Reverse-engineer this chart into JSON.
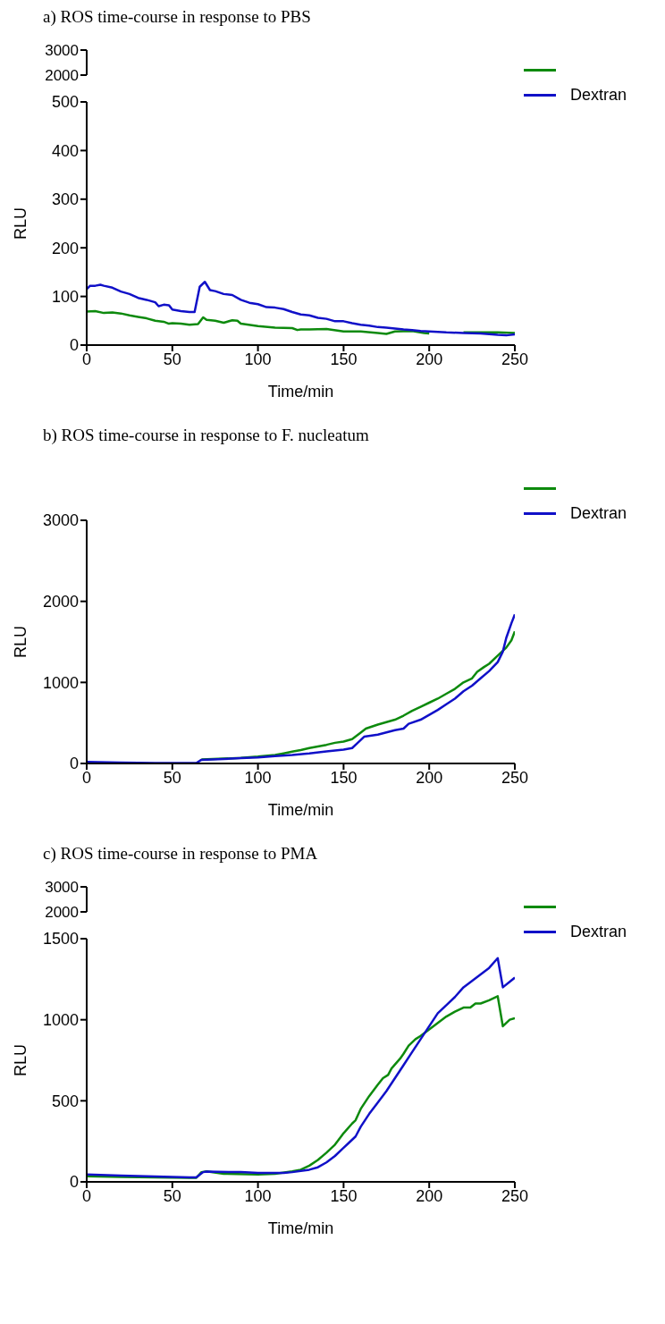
{
  "chart_data": [
    {
      "type": "line",
      "title": "a) ROS time-course in response to PBS",
      "xlabel": "Time/min",
      "ylabel": "RLU",
      "xlim": [
        0,
        250
      ],
      "xticks": [
        0,
        50,
        100,
        150,
        200,
        250
      ],
      "ylim": [
        0,
        500
      ],
      "yticks": [
        0,
        100,
        200,
        300,
        400,
        500
      ],
      "annotations": [
        "3000",
        "2000"
      ],
      "grid": false,
      "legend": "top right",
      "marker": "none",
      "line_style": "solid",
      "series": [
        {
          "color": "#0d8a0d",
          "x": [
            0,
            5,
            10,
            15,
            20,
            25,
            30,
            35,
            40,
            45,
            48,
            50,
            55,
            60,
            65,
            68,
            70,
            75,
            80,
            85,
            88,
            90,
            100,
            110,
            120,
            123,
            125,
            130,
            140,
            150,
            160,
            170,
            175,
            180,
            190,
            197,
            200,
            210,
            220,
            230,
            240,
            250
          ],
          "values": [
            69,
            70,
            66,
            67,
            65,
            61,
            58,
            55,
            50,
            48,
            44,
            45,
            44,
            42,
            43,
            57,
            52,
            50,
            46,
            51,
            50,
            44,
            39,
            36,
            35,
            31,
            32,
            32,
            33,
            28,
            28,
            25,
            23,
            28,
            29,
            25,
            24,
            null,
            26,
            26,
            26,
            25
          ]
        },
        {
          "name": "Dextran",
          "color": "#1010c8",
          "x": [
            0,
            2,
            5,
            8,
            10,
            15,
            20,
            25,
            30,
            35,
            40,
            42,
            45,
            48,
            50,
            55,
            60,
            63,
            66,
            69,
            72,
            75,
            80,
            85,
            90,
            95,
            100,
            105,
            110,
            115,
            120,
            125,
            130,
            135,
            140,
            145,
            150,
            155,
            160,
            165,
            170,
            175,
            180,
            185,
            190,
            195,
            200,
            210,
            220,
            230,
            240,
            245,
            250
          ],
          "values": [
            115,
            122,
            122,
            124,
            122,
            118,
            110,
            105,
            97,
            93,
            88,
            80,
            83,
            82,
            73,
            70,
            68,
            68,
            120,
            130,
            113,
            111,
            105,
            103,
            93,
            87,
            84,
            78,
            77,
            74,
            68,
            63,
            61,
            56,
            54,
            49,
            49,
            45,
            42,
            40,
            37,
            36,
            34,
            32,
            31,
            29,
            28,
            26,
            25,
            24,
            21,
            20,
            22
          ]
        }
      ]
    },
    {
      "type": "line",
      "title": "b) ROS time-course in response to F. nucleatum",
      "xlabel": "Time/min",
      "ylabel": "RLU",
      "xlim": [
        0,
        250
      ],
      "xticks": [
        0,
        50,
        100,
        150,
        200,
        250
      ],
      "ylim": [
        0,
        3000
      ],
      "yticks": [
        0,
        1000,
        2000,
        3000
      ],
      "grid": false,
      "legend": "top right",
      "marker": "none",
      "line_style": "solid",
      "series": [
        {
          "color": "#0d8a0d",
          "x": [
            67,
            80,
            90,
            100,
            110,
            115,
            120,
            125,
            130,
            135,
            140,
            145,
            150,
            155,
            160,
            163,
            170,
            175,
            180,
            185,
            190,
            195,
            200,
            205,
            210,
            215,
            220,
            225,
            228,
            232,
            235,
            240,
            245,
            248,
            250
          ],
          "values": [
            50,
            60,
            70,
            85,
            105,
            125,
            145,
            165,
            190,
            210,
            230,
            255,
            270,
            300,
            380,
            430,
            480,
            510,
            540,
            590,
            650,
            700,
            750,
            800,
            860,
            920,
            1000,
            1050,
            1130,
            1190,
            1230,
            1330,
            1430,
            1520,
            1630
          ]
        },
        {
          "name": "Dextran",
          "color": "#1010c8",
          "x": [
            0,
            20,
            40,
            64,
            67,
            80,
            90,
            100,
            110,
            120,
            130,
            140,
            150,
            155,
            158,
            162,
            170,
            180,
            185,
            188,
            195,
            200,
            205,
            210,
            215,
            220,
            225,
            230,
            235,
            240,
            243,
            245,
            248,
            250
          ],
          "values": [
            20,
            10,
            5,
            5,
            45,
            55,
            65,
            75,
            90,
            105,
            125,
            150,
            170,
            190,
            250,
            330,
            355,
            410,
            430,
            490,
            540,
            600,
            660,
            730,
            800,
            890,
            960,
            1050,
            1140,
            1250,
            1380,
            1550,
            1730,
            1840
          ]
        }
      ]
    },
    {
      "type": "line",
      "title": "c) ROS time-course in response to PMA",
      "xlabel": "Time/min",
      "ylabel": "RLU",
      "xlim": [
        0,
        250
      ],
      "xticks": [
        0,
        50,
        100,
        150,
        200,
        250
      ],
      "ylim": [
        0,
        1500
      ],
      "yticks": [
        0,
        500,
        1000,
        1500
      ],
      "annotations": [
        "3000",
        "2000"
      ],
      "grid": false,
      "legend": "top right",
      "marker": "none",
      "line_style": "solid",
      "series": [
        {
          "color": "#0d8a0d",
          "x": [
            0,
            20,
            40,
            60,
            64,
            67,
            70,
            80,
            100,
            110,
            120,
            125,
            130,
            135,
            140,
            145,
            150,
            155,
            157,
            160,
            165,
            170,
            173,
            176,
            178,
            183,
            185,
            188,
            192,
            195,
            200,
            205,
            210,
            215,
            220,
            224,
            227,
            230,
            235,
            240,
            243,
            247,
            250
          ],
          "values": [
            35,
            30,
            28,
            25,
            25,
            60,
            65,
            50,
            45,
            50,
            65,
            75,
            100,
            135,
            180,
            230,
            300,
            360,
            380,
            450,
            530,
            600,
            640,
            660,
            700,
            760,
            790,
            840,
            880,
            900,
            940,
            980,
            1020,
            1050,
            1075,
            1075,
            1100,
            1100,
            1120,
            1145,
            960,
            1000,
            1010
          ]
        },
        {
          "name": "Dextran",
          "color": "#1010c8",
          "x": [
            0,
            20,
            40,
            60,
            64,
            68,
            70,
            90,
            100,
            115,
            120,
            130,
            135,
            140,
            145,
            150,
            153,
            157,
            160,
            165,
            170,
            175,
            180,
            185,
            190,
            195,
            200,
            205,
            210,
            215,
            220,
            225,
            230,
            235,
            240,
            243,
            250
          ],
          "values": [
            45,
            38,
            33,
            28,
            28,
            60,
            63,
            60,
            55,
            55,
            60,
            75,
            90,
            120,
            160,
            210,
            240,
            280,
            340,
            420,
            490,
            560,
            640,
            720,
            800,
            880,
            960,
            1040,
            1090,
            1140,
            1200,
            1240,
            1280,
            1320,
            1380,
            1200,
            1260
          ]
        }
      ]
    }
  ]
}
